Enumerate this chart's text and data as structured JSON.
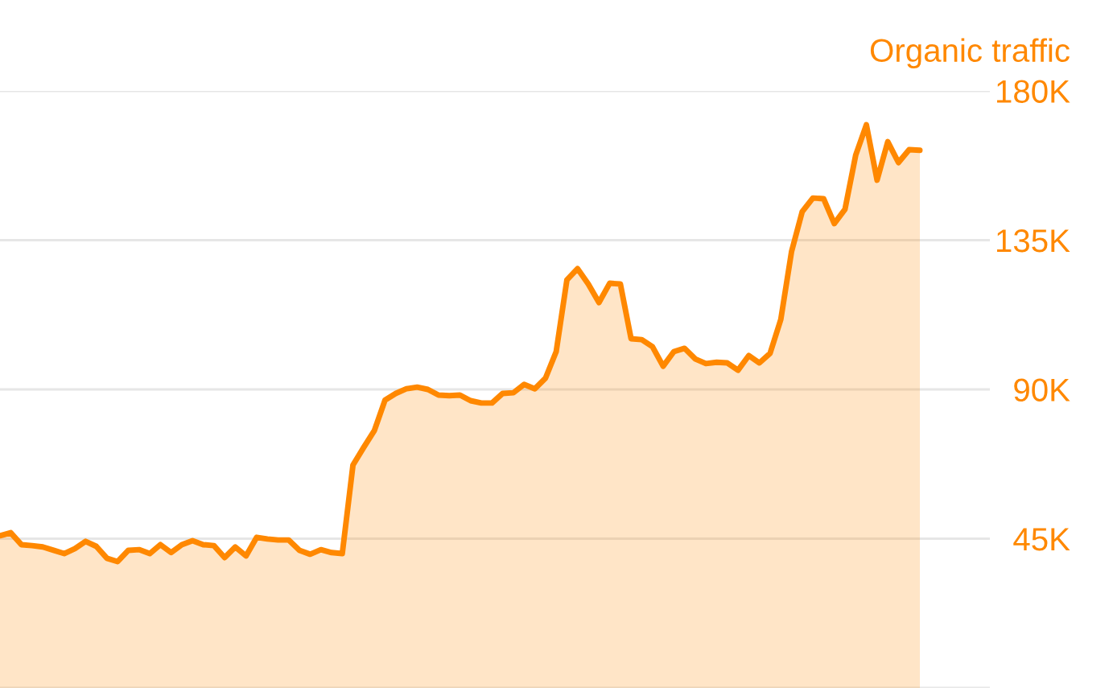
{
  "chart_data": {
    "type": "area",
    "categories": [
      null,
      null,
      null,
      null,
      null,
      null,
      null,
      null,
      null,
      null,
      null,
      null,
      null,
      null,
      null,
      null,
      null,
      null,
      null,
      null,
      null,
      null,
      null,
      null,
      null,
      null,
      null,
      null,
      null,
      null,
      null,
      null,
      null,
      null,
      null,
      null,
      null,
      null,
      null,
      null,
      null,
      null,
      null,
      null,
      null,
      null,
      null,
      null,
      null,
      null,
      null,
      null,
      null,
      null,
      null,
      null,
      null,
      null,
      null,
      null,
      null,
      null,
      null,
      null,
      null,
      null,
      null,
      null,
      null,
      null,
      null,
      null,
      null,
      null,
      null,
      null,
      null,
      null,
      null,
      null,
      null,
      null,
      null,
      null,
      null,
      null,
      null
    ],
    "series": [
      {
        "name": "Organic traffic",
        "color": "#ff8800",
        "values": [
          45900,
          46800,
          43200,
          42900,
          42500,
          41500,
          40500,
          42000,
          44200,
          42700,
          39100,
          38100,
          41500,
          41700,
          40500,
          43200,
          40800,
          43200,
          44400,
          43200,
          42900,
          39300,
          42500,
          39800,
          45400,
          44900,
          44600,
          44600,
          41500,
          40300,
          41700,
          40800,
          40500,
          67200,
          72500,
          77600,
          86800,
          88800,
          90200,
          90700,
          90000,
          88300,
          88100,
          88300,
          86600,
          85900,
          85900,
          88800,
          89000,
          91500,
          90200,
          93400,
          101400,
          123000,
          126400,
          121800,
          116200,
          122000,
          121800,
          105300,
          105000,
          102900,
          97000,
          101400,
          102400,
          99200,
          97800,
          98200,
          98000,
          95800,
          100200,
          98000,
          100900,
          111100,
          131500,
          143600,
          147700,
          147500,
          140000,
          144300,
          160600,
          169800,
          153100,
          164700,
          158400,
          162300,
          162100
        ]
      }
    ],
    "ylim": [
      0,
      180000
    ],
    "yticks": [
      {
        "value": 0,
        "label": null
      },
      {
        "value": 45000,
        "label": "45K"
      },
      {
        "value": 90000,
        "label": "90K"
      },
      {
        "value": 135000,
        "label": "135K"
      },
      {
        "value": 180000,
        "label": "180K"
      }
    ],
    "grid": "y",
    "legend": "top right",
    "tick_labels": "y"
  }
}
